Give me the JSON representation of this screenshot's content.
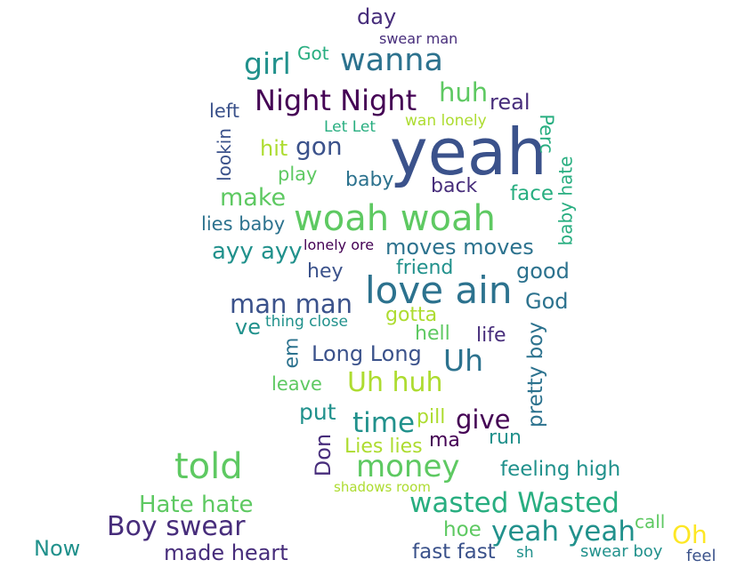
{
  "palette": {
    "dark_purple": "#440154",
    "indigo": "#472d7b",
    "navy": "#3b528b",
    "slate_blue": "#2c728e",
    "teal": "#21918c",
    "green": "#28ae80",
    "light_green": "#5ec962",
    "lime": "#addc30",
    "yellow": "#fde725"
  },
  "words": [
    {
      "text": "yeah",
      "color": "#3b528b"
    },
    {
      "text": "woah woah",
      "color": "#5ec962"
    },
    {
      "text": "love ain",
      "color": "#2c728e"
    },
    {
      "text": "told",
      "color": "#5ec962"
    },
    {
      "text": "money",
      "color": "#5ec962"
    },
    {
      "text": "wasted Wasted",
      "color": "#28ae80"
    },
    {
      "text": "Night Night",
      "color": "#440154"
    },
    {
      "text": "wanna",
      "color": "#2c728e"
    },
    {
      "text": "Boy swear",
      "color": "#472d7b"
    },
    {
      "text": "yeah yeah",
      "color": "#21918c"
    },
    {
      "text": "Uh",
      "color": "#2c728e"
    },
    {
      "text": "Uh huh",
      "color": "#addc30"
    },
    {
      "text": "girl",
      "color": "#21918c"
    },
    {
      "text": "time",
      "color": "#21918c"
    },
    {
      "text": "man man",
      "color": "#3b528b"
    },
    {
      "text": "give",
      "color": "#440154"
    },
    {
      "text": "huh",
      "color": "#5ec962"
    },
    {
      "text": "moves moves",
      "color": "#2c728e"
    },
    {
      "text": "make",
      "color": "#5ec962"
    },
    {
      "text": "gon",
      "color": "#3b528b"
    },
    {
      "text": "Hate hate",
      "color": "#5ec962"
    },
    {
      "text": "Oh",
      "color": "#fde725"
    },
    {
      "text": "ayy ayy",
      "color": "#21918c"
    },
    {
      "text": "Long Long",
      "color": "#3b528b"
    },
    {
      "text": "real",
      "color": "#472d7b"
    },
    {
      "text": "put",
      "color": "#21918c"
    },
    {
      "text": "made heart",
      "color": "#472d7b"
    },
    {
      "text": "fast fast",
      "color": "#3b528b"
    },
    {
      "text": "day",
      "color": "#472d7b"
    },
    {
      "text": "pretty boy",
      "color": "#2c728e"
    },
    {
      "text": "Now",
      "color": "#21918c"
    },
    {
      "text": "God",
      "color": "#2c728e"
    },
    {
      "text": "good",
      "color": "#2c728e"
    },
    {
      "text": "face",
      "color": "#28ae80"
    },
    {
      "text": "feeling",
      "color": "#21918c"
    },
    {
      "text": "high",
      "color": "#21918c"
    },
    {
      "text": "back",
      "color": "#472d7b"
    },
    {
      "text": "hoe",
      "color": "#5ec962"
    },
    {
      "text": "baby",
      "color": "#2c728e"
    },
    {
      "text": "gotta",
      "color": "#addc30"
    },
    {
      "text": "hell",
      "color": "#5ec962"
    },
    {
      "text": "hey",
      "color": "#3b528b"
    },
    {
      "text": "friend",
      "color": "#21918c"
    },
    {
      "text": "hit",
      "color": "#addc30"
    },
    {
      "text": "left",
      "color": "#3b528b"
    },
    {
      "text": "leave",
      "color": "#5ec962"
    },
    {
      "text": "Lies lies",
      "color": "#addc30"
    },
    {
      "text": "lies baby",
      "color": "#2c728e"
    },
    {
      "text": "life",
      "color": "#472d7b"
    },
    {
      "text": "pill",
      "color": "#addc30"
    },
    {
      "text": "ma",
      "color": "#440154"
    },
    {
      "text": "run",
      "color": "#21918c"
    },
    {
      "text": "ve",
      "color": "#21918c"
    },
    {
      "text": "em",
      "color": "#2c728e"
    },
    {
      "text": "Don",
      "color": "#472d7b"
    },
    {
      "text": "play",
      "color": "#5ec962"
    },
    {
      "text": "Got",
      "color": "#28ae80"
    },
    {
      "text": "lookin",
      "color": "#3b528b"
    },
    {
      "text": "Perc",
      "color": "#28ae80"
    },
    {
      "text": "baby hate",
      "color": "#28ae80"
    },
    {
      "text": "call",
      "color": "#5ec962"
    },
    {
      "text": "swear boy",
      "color": "#21918c"
    },
    {
      "text": "feel",
      "color": "#3b528b"
    },
    {
      "text": "Let Let",
      "color": "#28ae80"
    },
    {
      "text": "wan lonely",
      "color": "#addc30"
    },
    {
      "text": "thing close",
      "color": "#21918c"
    },
    {
      "text": "lonely ore",
      "color": "#440154"
    },
    {
      "text": "swear man",
      "color": "#472d7b"
    },
    {
      "text": "shadows room",
      "color": "#addc30"
    },
    {
      "text": "sh",
      "color": "#21918c"
    }
  ]
}
